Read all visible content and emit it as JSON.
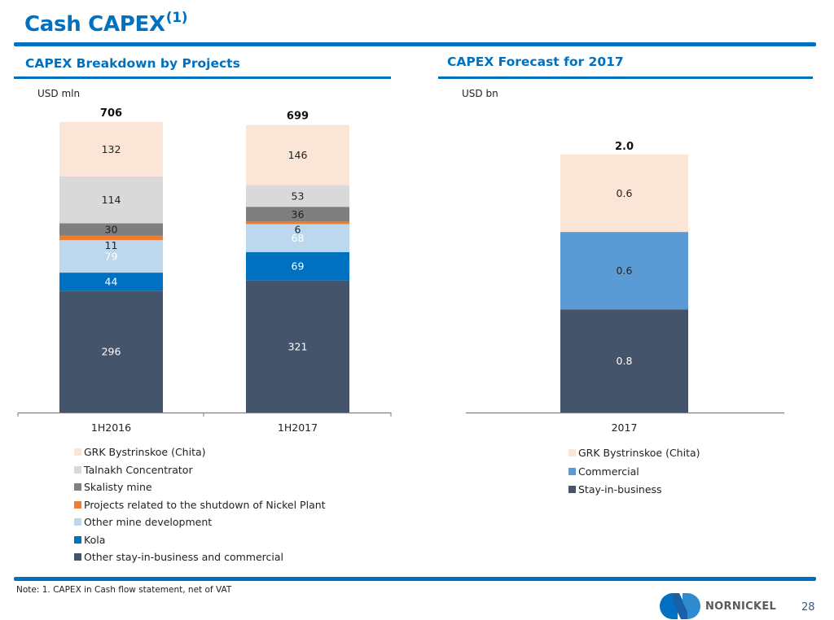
{
  "header": {
    "title": "Cash CAPEX",
    "title_superscript": "(1)"
  },
  "left_panel": {
    "heading": "CAPEX Breakdown by Projects",
    "unit": "USD mln"
  },
  "right_panel": {
    "heading": "CAPEX Forecast for 2017",
    "unit": "USD bn"
  },
  "chart_data": [
    {
      "type": "bar",
      "stacked": true,
      "title": "CAPEX Breakdown by Projects",
      "ylabel": "USD mln",
      "xlabel": "",
      "categories": [
        "1H2016",
        "1H2017"
      ],
      "totals": [
        "706",
        "699"
      ],
      "ylim": [
        0,
        706
      ],
      "grid": false,
      "legend_position": "bottom",
      "series": [
        {
          "name": "Other stay-in-business and commercial",
          "color": "#44546A",
          "label_color": "#ffffff",
          "values": [
            296,
            321
          ]
        },
        {
          "name": "Kola",
          "color": "#0070C0",
          "label_color": "#ffffff",
          "values": [
            44,
            69
          ]
        },
        {
          "name": "Other mine development",
          "color": "#BDD7EE",
          "label_color": "#ffffff",
          "values": [
            79,
            68
          ]
        },
        {
          "name": "Projects related to the shutdown of Nickel Plant",
          "color": "#ED7D31",
          "label_color": "#222222",
          "values": [
            11,
            6
          ]
        },
        {
          "name": "Skalisty mine",
          "color": "#7F7F7F",
          "label_color": "#222222",
          "values": [
            30,
            36
          ]
        },
        {
          "name": "Talnakh Concentrator",
          "color": "#D9D9D9",
          "label_color": "#222222",
          "values": [
            114,
            53
          ]
        },
        {
          "name": "GRK Bystrinskoe (Chita)",
          "color": "#FBE5D6",
          "label_color": "#222222",
          "values": [
            132,
            146
          ]
        }
      ],
      "legend_order": [
        "GRK Bystrinskoe (Chita)",
        "Talnakh Concentrator",
        "Skalisty mine",
        "Projects related to the shutdown of Nickel Plant",
        "Other mine development",
        "Kola",
        "Other stay-in-business and commercial"
      ]
    },
    {
      "type": "bar",
      "stacked": true,
      "title": "CAPEX Forecast for 2017",
      "ylabel": "USD bn",
      "xlabel": "",
      "categories": [
        "2017"
      ],
      "totals": [
        "2.0"
      ],
      "ylim": [
        0,
        2.0
      ],
      "grid": false,
      "legend_position": "bottom",
      "series": [
        {
          "name": "Stay-in-business",
          "color": "#44546A",
          "label_color": "#ffffff",
          "values": [
            0.8
          ],
          "labels": [
            "0.8"
          ]
        },
        {
          "name": "Commercial",
          "color": "#5B9BD5",
          "label_color": "#222222",
          "values": [
            0.6
          ],
          "labels": [
            "0.6"
          ]
        },
        {
          "name": "GRK Bystrinskoe (Chita)",
          "color": "#FBE5D6",
          "label_color": "#222222",
          "values": [
            0.6
          ],
          "labels": [
            "0.6"
          ]
        }
      ],
      "legend_order": [
        "GRK Bystrinskoe (Chita)",
        "Commercial",
        "Stay-in-business"
      ]
    }
  ],
  "footer": {
    "note": "Note: 1. CAPEX in Cash flow statement, net of VAT",
    "brand": "NORNICKEL",
    "page_number": "28",
    "brand_colors": {
      "left": "#0070C0",
      "right": "#2E8BD0",
      "center": "#1A5FA8"
    }
  }
}
